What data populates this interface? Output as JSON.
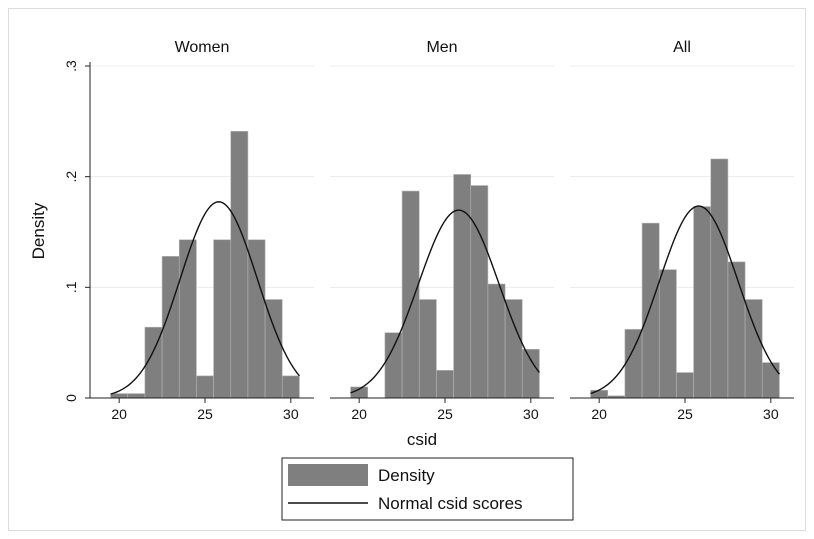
{
  "chart_data": {
    "type": "histogram",
    "xlabel": "csid",
    "ylabel": "Density",
    "ylim": [
      0,
      0.3
    ],
    "yticks": [
      {
        "value": 0,
        "label": "0"
      },
      {
        "value": 0.1,
        "label": ".1"
      },
      {
        "value": 0.2,
        "label": ".2"
      },
      {
        "value": 0.3,
        "label": ".3"
      }
    ],
    "xlim": [
      19,
      31
    ],
    "xticks": [
      {
        "value": 20,
        "label": "20"
      },
      {
        "value": 25,
        "label": "25"
      },
      {
        "value": 30,
        "label": "30"
      }
    ],
    "bar_color": "#7f7f7f",
    "curve_color": "#111111",
    "grid": true,
    "bin_width": 1,
    "panels": [
      {
        "title": "Women",
        "bin_starts": [
          19.5,
          20.5,
          21.5,
          22.5,
          23.5,
          24.5,
          25.5,
          26.5,
          27.5,
          28.5,
          29.5
        ],
        "density": [
          0.004,
          0.004,
          0.064,
          0.128,
          0.143,
          0.02,
          0.143,
          0.241,
          0.143,
          0.089,
          0.02
        ],
        "normal": {
          "mean": 25.8,
          "sd": 2.25
        }
      },
      {
        "title": "Men",
        "bin_starts": [
          19.5,
          20.5,
          21.5,
          22.5,
          23.5,
          24.5,
          25.5,
          26.5,
          27.5,
          28.5,
          29.5
        ],
        "density": [
          0.01,
          0.0,
          0.059,
          0.187,
          0.089,
          0.025,
          0.202,
          0.192,
          0.103,
          0.089,
          0.044
        ],
        "normal": {
          "mean": 25.8,
          "sd": 2.35
        }
      },
      {
        "title": "All",
        "bin_starts": [
          19.5,
          20.5,
          21.5,
          22.5,
          23.5,
          24.5,
          25.5,
          26.5,
          27.5,
          28.5,
          29.5
        ],
        "density": [
          0.007,
          0.002,
          0.062,
          0.158,
          0.116,
          0.023,
          0.173,
          0.216,
          0.123,
          0.089,
          0.032
        ],
        "normal": {
          "mean": 25.8,
          "sd": 2.3
        }
      }
    ],
    "legend": {
      "position": "bottom",
      "items": [
        {
          "label": "Density",
          "kind": "bar"
        },
        {
          "label": "Normal csid scores",
          "kind": "line"
        }
      ]
    }
  }
}
